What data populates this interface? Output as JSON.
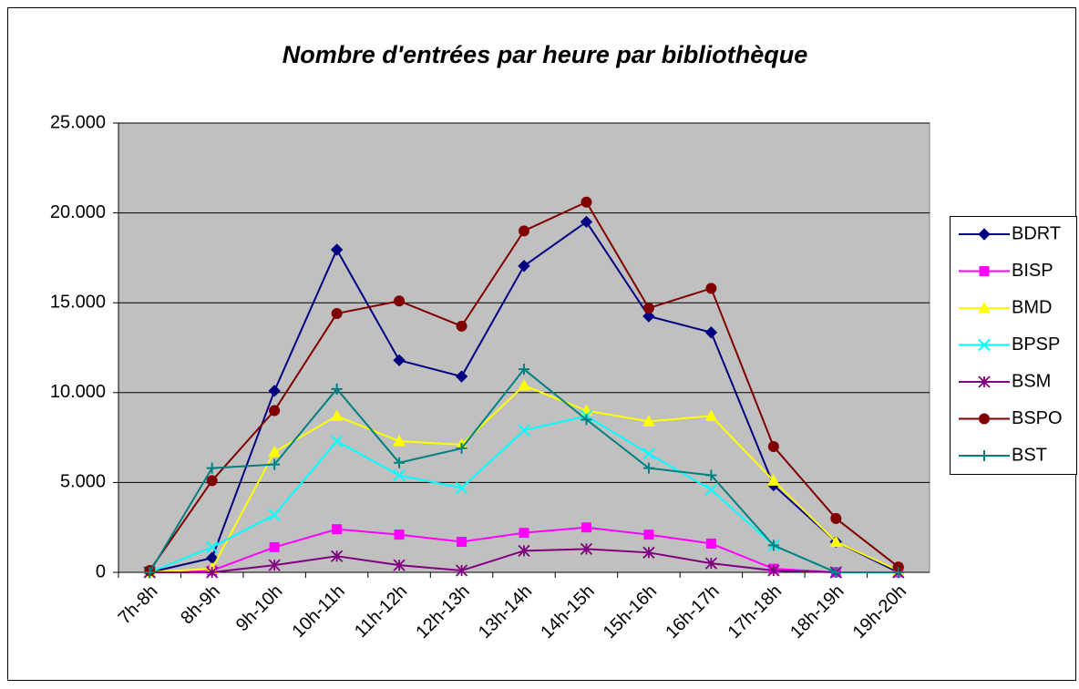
{
  "chart_data": {
    "type": "line",
    "title": "Nombre d'entrées par heure par bibliothèque",
    "categories": [
      "7h-8h",
      "8h-9h",
      "9h-10h",
      "10h-11h",
      "11h-12h",
      "12h-13h",
      "13h-14h",
      "14h-15h",
      "15h-16h",
      "16h-17h",
      "17h-18h",
      "18h-19h",
      "19h-20h"
    ],
    "ylim": [
      0,
      25000
    ],
    "yticks": [
      0,
      {
        "value": 5000,
        "label": "5.000"
      },
      {
        "value": 10000,
        "label": "10.000"
      },
      {
        "value": 15000,
        "label": "15.000"
      },
      {
        "value": 20000,
        "label": "20.000"
      },
      {
        "value": 25000,
        "label": "25.000"
      }
    ],
    "grid": true,
    "legend": "right",
    "series": [
      {
        "name": "BDRT",
        "color": "#000080",
        "marker": "diamond",
        "values": [
          0,
          800,
          10100,
          17950,
          11800,
          10900,
          17050,
          19500,
          14250,
          13350,
          4850,
          1700,
          0
        ]
      },
      {
        "name": "BISP",
        "color": "#ff00ff",
        "marker": "square",
        "values": [
          0,
          100,
          1400,
          2400,
          2100,
          1700,
          2200,
          2500,
          2100,
          1600,
          200,
          0,
          0
        ]
      },
      {
        "name": "BMD",
        "color": "#ffff00",
        "marker": "triangle",
        "values": [
          0,
          200,
          6700,
          8700,
          7300,
          7100,
          10400,
          9000,
          8400,
          8700,
          5100,
          1700,
          100
        ]
      },
      {
        "name": "BPSP",
        "color": "#00ffff",
        "marker": "x",
        "values": [
          0,
          1400,
          3200,
          7300,
          5400,
          4700,
          7900,
          8700,
          6600,
          4600,
          1500,
          0,
          0
        ]
      },
      {
        "name": "BSM",
        "color": "#800080",
        "marker": "asterisk",
        "values": [
          0,
          0,
          400,
          900,
          400,
          100,
          1200,
          1300,
          1100,
          500,
          100,
          0,
          0
        ]
      },
      {
        "name": "BSPO",
        "color": "#800000",
        "marker": "circle",
        "values": [
          100,
          5100,
          9000,
          14400,
          15100,
          13700,
          19000,
          20600,
          14700,
          15800,
          7000,
          3000,
          300
        ]
      },
      {
        "name": "BST",
        "color": "#008080",
        "marker": "plus",
        "values": [
          0,
          5800,
          6000,
          10200,
          6100,
          6900,
          11300,
          8500,
          5800,
          5400,
          1500,
          0,
          0
        ]
      }
    ]
  }
}
